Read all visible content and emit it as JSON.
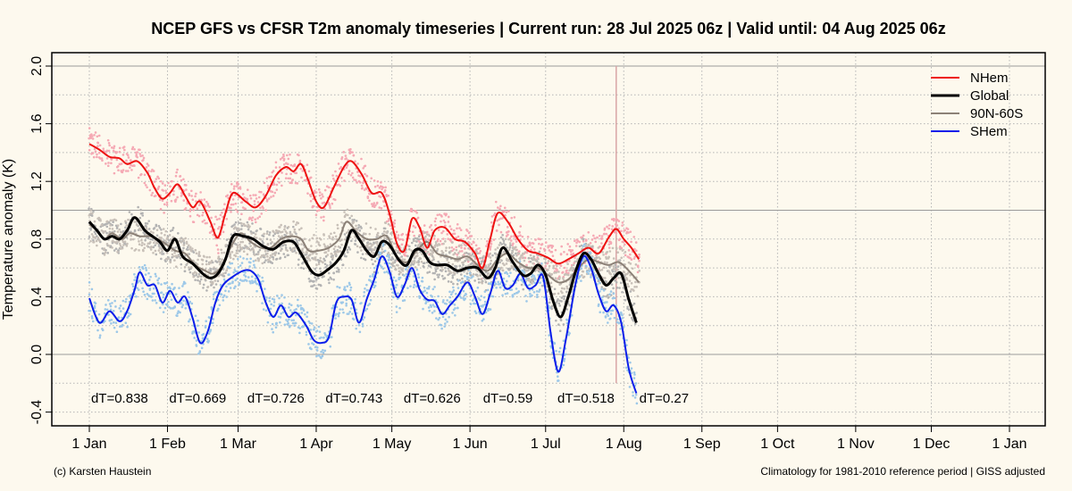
{
  "title": "NCEP GFS vs CFSR T2m anomaly timeseries | Current run: 28 Jul 2025 06z | Valid until: 04 Aug 2025 06z",
  "footer": {
    "left": "(c) Karsten Haustein",
    "right": "Climatology for 1981-2010 reference period | GISS adjusted"
  },
  "chart_data": {
    "type": "line",
    "title": "NCEP GFS vs CFSR T2m anomaly timeseries | Current run: 28 Jul 2025 06z | Valid until: 04 Aug 2025 06z",
    "xlabel": "",
    "ylabel": "Temperature anomaly (K)",
    "x_unit": "day of year",
    "xlim": [
      -5,
      370
    ],
    "ylim": [
      -0.45,
      2.05
    ],
    "x_ticks": [
      {
        "x": 0,
        "label": "1 Jan"
      },
      {
        "x": 31,
        "label": "1 Feb"
      },
      {
        "x": 59,
        "label": "1 Mar"
      },
      {
        "x": 90,
        "label": "1 Apr"
      },
      {
        "x": 120,
        "label": "1 May"
      },
      {
        "x": 151,
        "label": "1 Jun"
      },
      {
        "x": 181,
        "label": "1 Jul"
      },
      {
        "x": 212,
        "label": "1 Aug"
      },
      {
        "x": 243,
        "label": "1 Sep"
      },
      {
        "x": 273,
        "label": "1 Oct"
      },
      {
        "x": 304,
        "label": "1 Nov"
      },
      {
        "x": 334,
        "label": "1 Dec"
      },
      {
        "x": 365,
        "label": "1 Jan"
      }
    ],
    "y_ticks": [
      -0.4,
      0.0,
      0.4,
      0.8,
      1.2,
      1.6,
      2.0
    ],
    "y_tick_labels": [
      "-0.4",
      "0.0",
      "0.4",
      "0.8",
      "1.2",
      "1.6",
      "2.0"
    ],
    "grid": true,
    "reference_lines_y": [
      0.0,
      1.0,
      2.0
    ],
    "forecast_marker_x": 209,
    "legend": {
      "position": "top-right"
    },
    "annotations": [
      {
        "x": 12,
        "label": "dT=0.838"
      },
      {
        "x": 43,
        "label": "dT=0.669"
      },
      {
        "x": 74,
        "label": "dT=0.726"
      },
      {
        "x": 105,
        "label": "dT=0.743"
      },
      {
        "x": 136,
        "label": "dT=0.626"
      },
      {
        "x": 166,
        "label": "dT=0.59"
      },
      {
        "x": 197,
        "label": "dT=0.518"
      },
      {
        "x": 228,
        "label": "dT=0.27"
      }
    ],
    "series": [
      {
        "name": "NHem",
        "color": "#ee1111",
        "dots_color": "#f5a9b4",
        "points": [
          [
            0,
            1.46
          ],
          [
            4,
            1.42
          ],
          [
            8,
            1.37
          ],
          [
            12,
            1.36
          ],
          [
            15,
            1.32
          ],
          [
            19,
            1.34
          ],
          [
            23,
            1.26
          ],
          [
            26,
            1.15
          ],
          [
            29,
            1.08
          ],
          [
            32,
            1.12
          ],
          [
            35,
            1.18
          ],
          [
            38,
            1.1
          ],
          [
            41,
            1.02
          ],
          [
            44,
            1.06
          ],
          [
            48,
            0.92
          ],
          [
            51,
            0.81
          ],
          [
            54,
            0.98
          ],
          [
            57,
            1.12
          ],
          [
            62,
            1.06
          ],
          [
            66,
            1.02
          ],
          [
            70,
            1.1
          ],
          [
            74,
            1.24
          ],
          [
            78,
            1.3
          ],
          [
            81,
            1.27
          ],
          [
            84,
            1.32
          ],
          [
            87,
            1.2
          ],
          [
            90,
            1.06
          ],
          [
            93,
            1.02
          ],
          [
            97,
            1.16
          ],
          [
            101,
            1.3
          ],
          [
            104,
            1.34
          ],
          [
            108,
            1.25
          ],
          [
            112,
            1.12
          ],
          [
            116,
            1.12
          ],
          [
            119,
            0.98
          ],
          [
            122,
            0.77
          ],
          [
            125,
            0.72
          ],
          [
            128,
            0.94
          ],
          [
            131,
            0.88
          ],
          [
            134,
            0.74
          ],
          [
            137,
            0.86
          ],
          [
            141,
            0.88
          ],
          [
            145,
            0.8
          ],
          [
            149,
            0.78
          ],
          [
            153,
            0.7
          ],
          [
            156,
            0.6
          ],
          [
            159,
            0.8
          ],
          [
            162,
            0.98
          ],
          [
            166,
            0.92
          ],
          [
            170,
            0.8
          ],
          [
            174,
            0.72
          ],
          [
            178,
            0.7
          ],
          [
            182,
            0.67
          ],
          [
            186,
            0.63
          ],
          [
            190,
            0.66
          ],
          [
            194,
            0.7
          ],
          [
            198,
            0.74
          ],
          [
            202,
            0.7
          ],
          [
            206,
            0.81
          ],
          [
            209,
            0.87
          ],
          [
            212,
            0.8
          ],
          [
            215,
            0.74
          ],
          [
            218,
            0.66
          ]
        ]
      },
      {
        "name": "Global",
        "color": "#000000",
        "dots_color": "#b3b3b3",
        "points": [
          [
            0,
            0.92
          ],
          [
            3,
            0.86
          ],
          [
            6,
            0.8
          ],
          [
            9,
            0.82
          ],
          [
            12,
            0.8
          ],
          [
            15,
            0.86
          ],
          [
            18,
            0.95
          ],
          [
            22,
            0.86
          ],
          [
            25,
            0.82
          ],
          [
            28,
            0.78
          ],
          [
            31,
            0.72
          ],
          [
            34,
            0.8
          ],
          [
            37,
            0.68
          ],
          [
            41,
            0.63
          ],
          [
            45,
            0.56
          ],
          [
            48,
            0.53
          ],
          [
            51,
            0.56
          ],
          [
            54,
            0.66
          ],
          [
            57,
            0.82
          ],
          [
            61,
            0.82
          ],
          [
            65,
            0.8
          ],
          [
            69,
            0.75
          ],
          [
            73,
            0.73
          ],
          [
            77,
            0.78
          ],
          [
            81,
            0.78
          ],
          [
            84,
            0.7
          ],
          [
            88,
            0.58
          ],
          [
            91,
            0.55
          ],
          [
            94,
            0.58
          ],
          [
            98,
            0.64
          ],
          [
            101,
            0.72
          ],
          [
            104,
            0.86
          ],
          [
            107,
            0.8
          ],
          [
            110,
            0.72
          ],
          [
            113,
            0.68
          ],
          [
            116,
            0.78
          ],
          [
            119,
            0.76
          ],
          [
            123,
            0.65
          ],
          [
            126,
            0.62
          ],
          [
            129,
            0.72
          ],
          [
            132,
            0.72
          ],
          [
            135,
            0.64
          ],
          [
            138,
            0.62
          ],
          [
            142,
            0.62
          ],
          [
            146,
            0.58
          ],
          [
            150,
            0.6
          ],
          [
            154,
            0.6
          ],
          [
            158,
            0.53
          ],
          [
            161,
            0.6
          ],
          [
            164,
            0.74
          ],
          [
            168,
            0.64
          ],
          [
            172,
            0.55
          ],
          [
            175,
            0.56
          ],
          [
            178,
            0.62
          ],
          [
            181,
            0.55
          ],
          [
            184,
            0.37
          ],
          [
            187,
            0.26
          ],
          [
            190,
            0.4
          ],
          [
            193,
            0.58
          ],
          [
            196,
            0.7
          ],
          [
            199,
            0.66
          ],
          [
            202,
            0.56
          ],
          [
            205,
            0.48
          ],
          [
            208,
            0.53
          ],
          [
            211,
            0.56
          ],
          [
            214,
            0.38
          ],
          [
            217,
            0.22
          ]
        ]
      },
      {
        "name": "90N-60S",
        "color": "#8c8177",
        "dots_color": "#c8c0b8",
        "points": [
          [
            0,
            0.9
          ],
          [
            3,
            0.86
          ],
          [
            6,
            0.8
          ],
          [
            9,
            0.84
          ],
          [
            13,
            0.8
          ],
          [
            16,
            0.84
          ],
          [
            20,
            0.82
          ],
          [
            24,
            0.82
          ],
          [
            27,
            0.8
          ],
          [
            30,
            0.77
          ],
          [
            34,
            0.72
          ],
          [
            38,
            0.7
          ],
          [
            42,
            0.62
          ],
          [
            46,
            0.58
          ],
          [
            49,
            0.56
          ],
          [
            52,
            0.6
          ],
          [
            56,
            0.74
          ],
          [
            60,
            0.84
          ],
          [
            64,
            0.78
          ],
          [
            68,
            0.74
          ],
          [
            72,
            0.74
          ],
          [
            76,
            0.8
          ],
          [
            80,
            0.82
          ],
          [
            84,
            0.8
          ],
          [
            87,
            0.72
          ],
          [
            91,
            0.72
          ],
          [
            95,
            0.74
          ],
          [
            99,
            0.8
          ],
          [
            102,
            0.92
          ],
          [
            106,
            0.85
          ],
          [
            110,
            0.8
          ],
          [
            114,
            0.8
          ],
          [
            118,
            0.82
          ],
          [
            122,
            0.68
          ],
          [
            126,
            0.64
          ],
          [
            130,
            0.72
          ],
          [
            134,
            0.78
          ],
          [
            138,
            0.7
          ],
          [
            142,
            0.68
          ],
          [
            146,
            0.66
          ],
          [
            150,
            0.68
          ],
          [
            154,
            0.62
          ],
          [
            158,
            0.58
          ],
          [
            162,
            0.66
          ],
          [
            166,
            0.7
          ],
          [
            170,
            0.64
          ],
          [
            174,
            0.6
          ],
          [
            178,
            0.6
          ],
          [
            182,
            0.55
          ],
          [
            186,
            0.5
          ],
          [
            190,
            0.52
          ],
          [
            194,
            0.6
          ],
          [
            198,
            0.66
          ],
          [
            202,
            0.64
          ],
          [
            206,
            0.62
          ],
          [
            210,
            0.64
          ],
          [
            214,
            0.58
          ],
          [
            218,
            0.5
          ]
        ]
      },
      {
        "name": "SHem",
        "color": "#0b1eea",
        "dots_color": "#9dc8e8",
        "points": [
          [
            0,
            0.39
          ],
          [
            4,
            0.22
          ],
          [
            8,
            0.3
          ],
          [
            12,
            0.23
          ],
          [
            15,
            0.3
          ],
          [
            18,
            0.45
          ],
          [
            20,
            0.57
          ],
          [
            23,
            0.48
          ],
          [
            26,
            0.48
          ],
          [
            29,
            0.36
          ],
          [
            32,
            0.44
          ],
          [
            35,
            0.36
          ],
          [
            38,
            0.4
          ],
          [
            41,
            0.25
          ],
          [
            44,
            0.08
          ],
          [
            47,
            0.16
          ],
          [
            50,
            0.36
          ],
          [
            53,
            0.48
          ],
          [
            57,
            0.54
          ],
          [
            61,
            0.58
          ],
          [
            64,
            0.58
          ],
          [
            67,
            0.52
          ],
          [
            70,
            0.36
          ],
          [
            73,
            0.26
          ],
          [
            76,
            0.34
          ],
          [
            79,
            0.26
          ],
          [
            82,
            0.29
          ],
          [
            86,
            0.2
          ],
          [
            89,
            0.1
          ],
          [
            92,
            0.08
          ],
          [
            95,
            0.12
          ],
          [
            98,
            0.36
          ],
          [
            101,
            0.4
          ],
          [
            104,
            0.38
          ],
          [
            107,
            0.22
          ],
          [
            110,
            0.38
          ],
          [
            113,
            0.52
          ],
          [
            116,
            0.68
          ],
          [
            119,
            0.58
          ],
          [
            122,
            0.4
          ],
          [
            125,
            0.48
          ],
          [
            128,
            0.6
          ],
          [
            131,
            0.45
          ],
          [
            134,
            0.38
          ],
          [
            137,
            0.37
          ],
          [
            140,
            0.28
          ],
          [
            143,
            0.34
          ],
          [
            146,
            0.4
          ],
          [
            150,
            0.5
          ],
          [
            153,
            0.4
          ],
          [
            156,
            0.28
          ],
          [
            159,
            0.42
          ],
          [
            162,
            0.58
          ],
          [
            165,
            0.46
          ],
          [
            168,
            0.48
          ],
          [
            171,
            0.56
          ],
          [
            174,
            0.46
          ],
          [
            177,
            0.48
          ],
          [
            180,
            0.54
          ],
          [
            183,
            0.15
          ],
          [
            186,
            -0.12
          ],
          [
            189,
            0.1
          ],
          [
            193,
            0.5
          ],
          [
            196,
            0.68
          ],
          [
            199,
            0.6
          ],
          [
            202,
            0.42
          ],
          [
            205,
            0.3
          ],
          [
            208,
            0.34
          ],
          [
            211,
            0.22
          ],
          [
            214,
            -0.1
          ],
          [
            217,
            -0.27
          ]
        ]
      }
    ]
  }
}
